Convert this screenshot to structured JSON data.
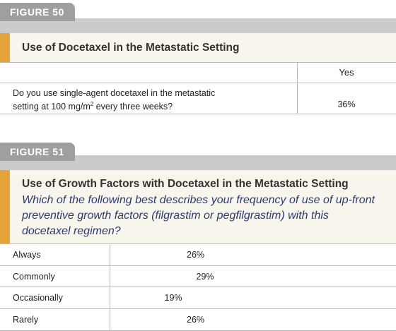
{
  "figure50": {
    "tab": "FIGURE 50",
    "title": "Use of Docetaxel in the Metastatic Setting",
    "column_header": "Yes",
    "question": {
      "text": "Do you use single-agent docetaxel in the metastatic setting at 100 mg/m",
      "superscript": "2",
      "text_end": " every three weeks?"
    },
    "answer": "36%"
  },
  "figure51": {
    "tab": "FIGURE 51",
    "title": "Use of Growth Factors with Docetaxel in the Metastatic Setting",
    "question": "Which of the following best describes your frequency of use of up-front preventive growth factors (filgrastim or pegfilgrastim) with this docetaxel regimen?",
    "categories": [
      "Always",
      "Commonly",
      "Occasionally",
      "Rarely"
    ],
    "values": [
      26,
      29,
      19,
      26
    ],
    "value_labels": [
      "26%",
      "29%",
      "19%",
      "26%"
    ]
  }
}
